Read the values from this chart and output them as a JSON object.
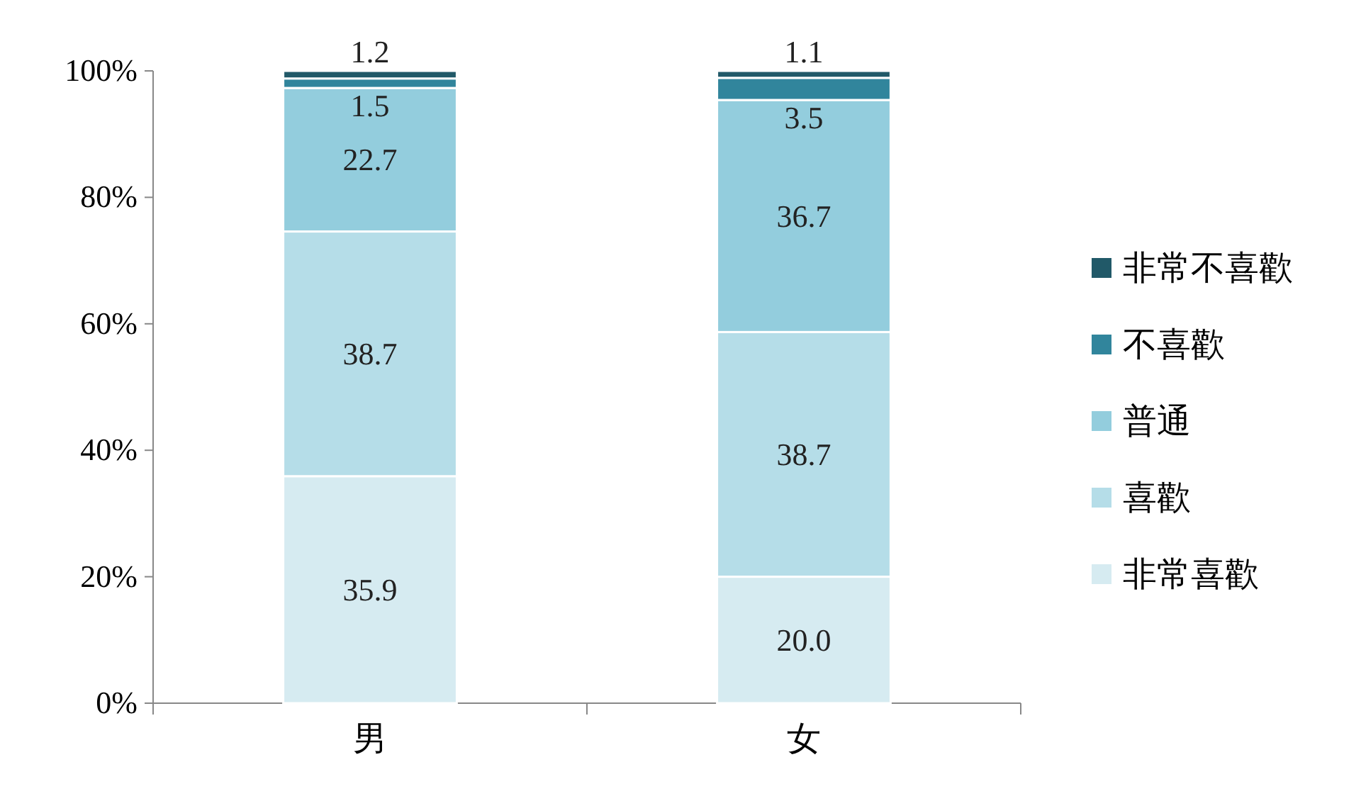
{
  "chart_data": {
    "type": "bar",
    "stacked": true,
    "categories": [
      "男",
      "女"
    ],
    "series": [
      {
        "name": "非常喜歡",
        "color": "#d6ebf1",
        "values": [
          35.9,
          20.0
        ],
        "value_labels": [
          "35.9",
          "20.0"
        ]
      },
      {
        "name": "喜歡",
        "color": "#b5dde8",
        "values": [
          38.7,
          38.7
        ],
        "value_labels": [
          "38.7",
          "38.7"
        ]
      },
      {
        "name": "普通",
        "color": "#93cddd",
        "values": [
          22.7,
          36.7
        ],
        "value_labels": [
          "22.7",
          "36.7"
        ]
      },
      {
        "name": "不喜歡",
        "color": "#31859c",
        "values": [
          1.5,
          3.5
        ],
        "value_labels": [
          "1.5",
          "3.5"
        ]
      },
      {
        "name": "非常不喜歡",
        "color": "#215968",
        "values": [
          1.2,
          1.1
        ],
        "value_labels": [
          "1.2",
          "1.1"
        ]
      }
    ],
    "ylim": [
      0,
      100
    ],
    "yticks": [
      {
        "value": 0,
        "label": "0%"
      },
      {
        "value": 20,
        "label": "20%"
      },
      {
        "value": 40,
        "label": "40%"
      },
      {
        "value": 60,
        "label": "60%"
      },
      {
        "value": 80,
        "label": "80%"
      },
      {
        "value": 100,
        "label": "100%"
      }
    ],
    "grid": false,
    "legend": "right"
  }
}
